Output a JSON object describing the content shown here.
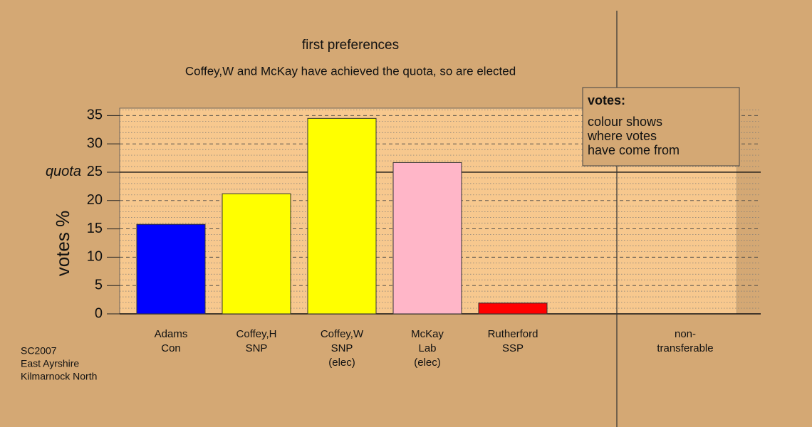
{
  "chart_data": {
    "type": "bar",
    "title": "first preferences",
    "subtitle": "Coffey,W and McKay have achieved the quota, so are elected",
    "y_label": "votes %",
    "categories": [
      [
        "Adams",
        "Con"
      ],
      [
        "Coffey,H",
        "SNP"
      ],
      [
        "Coffey,W",
        "SNP",
        "(elec)"
      ],
      [
        "McKay",
        "Lab",
        "(elec)"
      ],
      [
        "Rutherford",
        "SSP"
      ]
    ],
    "values": [
      15.8,
      21.2,
      34.5,
      26.7,
      1.9
    ],
    "colors": [
      "#0000ff",
      "#ffff00",
      "#ffff00",
      "#ffb6c8",
      "#ff0000"
    ],
    "extra_category": [
      "non-",
      "transferable"
    ],
    "quota": {
      "value": 25,
      "label": "quota"
    },
    "ylim": [
      0,
      36.3
    ],
    "yticks": [
      0,
      5,
      10,
      15,
      20,
      25,
      30,
      35
    ],
    "grid": true,
    "legend": {
      "title": "votes:",
      "lines": [
        "colour shows",
        "where votes",
        "have come from"
      ]
    },
    "footnote": [
      "SC2007",
      "East Ayrshire",
      "Kilmarnock North"
    ]
  }
}
